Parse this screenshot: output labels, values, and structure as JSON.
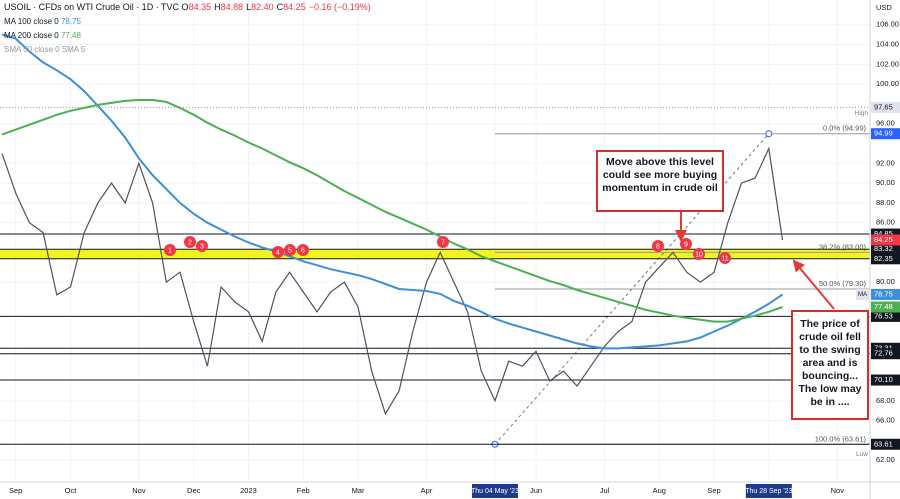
{
  "chart_data": {
    "type": "line",
    "title": "USOIL · CFDs on WTI Crude Oil · 1D · TVC",
    "ohlc": [
      {
        "key": "O",
        "text": "84.35"
      },
      {
        "key": "H",
        "text": "84.88"
      },
      {
        "key": "L",
        "text": "82.40"
      },
      {
        "key": "C",
        "text": "84.25"
      },
      {
        "key": "",
        "text": "−0.16 (−0.19%)"
      }
    ],
    "indicator_off": "SMA 50 close 0 SMA 5",
    "currency": "USD",
    "categories": [
      null,
      "Sep",
      null,
      null,
      null,
      "Oct",
      null,
      null,
      null,
      null,
      "Nov",
      null,
      null,
      null,
      "Dec",
      null,
      null,
      null,
      "2023",
      null,
      null,
      null,
      "Feb",
      null,
      null,
      null,
      "Mar",
      null,
      null,
      null,
      null,
      "Apr",
      null,
      null,
      null,
      null,
      "Thu 04 May '23",
      null,
      null,
      "Jun",
      null,
      null,
      null,
      null,
      "Jul",
      null,
      null,
      null,
      "Aug",
      null,
      null,
      null,
      "Sep",
      null,
      null,
      null,
      "Thu 28 Sep '23",
      null,
      null,
      null,
      null,
      "Nov",
      null
    ],
    "series": [
      {
        "color": "#50535e",
        "values": [
          93,
          89,
          86,
          85,
          78.7,
          79.5,
          85,
          88,
          90,
          88,
          92,
          88,
          80,
          81,
          76,
          71.5,
          79.5,
          78,
          77,
          74,
          79,
          81,
          79,
          77,
          79,
          80,
          77.5,
          71,
          66.7,
          69,
          75,
          80,
          83,
          80,
          77,
          71,
          68,
          72,
          71.5,
          73,
          70,
          71,
          69.5,
          71.5,
          73.5,
          75,
          76,
          80,
          81.5,
          83,
          81,
          80,
          81,
          86,
          90,
          90.5,
          93.5,
          84.25,
          null,
          null,
          null,
          null,
          null
        ]
      },
      {
        "name": "MA 100 close 0",
        "legend_value": "78.75",
        "color": "#3d8fd9",
        "values": [
          105,
          104.6,
          103.3,
          102.2,
          101.4,
          100.5,
          99.3,
          97.8,
          96.3,
          94.6,
          92.5,
          90.8,
          89.4,
          88.0,
          86.9,
          86.0,
          85.3,
          84.6,
          84.0,
          83.5,
          83.1,
          82.6,
          82.1,
          81.7,
          81.3,
          81.0,
          80.7,
          80.3,
          79.8,
          79.3,
          79.2,
          79.1,
          78.8,
          78.1,
          77.6,
          77.0,
          76.3,
          75.8,
          75.4,
          75.0,
          74.6,
          74.2,
          73.8,
          73.5,
          73.3,
          73.3,
          73.4,
          73.5,
          73.6,
          73.8,
          74.0,
          74.4,
          75.0,
          75.6,
          76.3,
          77.0,
          77.8,
          78.75,
          null,
          null,
          null,
          null,
          null
        ]
      },
      {
        "name": "MA 200 close 0",
        "legend_value": "77.48",
        "color": "#4caf50",
        "values": [
          94.9,
          95.4,
          95.9,
          96.4,
          96.9,
          97.3,
          97.6,
          97.9,
          98.1,
          98.3,
          98.4,
          98.4,
          98.2,
          97.6,
          96.9,
          96.1,
          95.4,
          94.8,
          94.1,
          93.5,
          92.8,
          92.1,
          91.5,
          90.8,
          90.0,
          89.2,
          88.5,
          87.8,
          87.1,
          86.5,
          85.9,
          85.3,
          84.6,
          83.9,
          83.3,
          82.6,
          82.1,
          81.6,
          81.1,
          80.6,
          80.1,
          79.7,
          79.2,
          78.8,
          78.4,
          78.0,
          77.6,
          77.2,
          76.9,
          76.6,
          76.4,
          76.2,
          76.0,
          76.0,
          76.3,
          76.6,
          77.0,
          77.48,
          null,
          null,
          null,
          null,
          null
        ]
      }
    ],
    "ylim": [
      60,
      108.5
    ],
    "yticks": [
      {
        "value": 106,
        "label": "106.00"
      },
      {
        "value": 104,
        "label": "104.00"
      },
      {
        "value": 102,
        "label": "102.00"
      },
      {
        "value": 100,
        "label": "100.00"
      },
      {
        "value": 96,
        "label": "96.00"
      },
      {
        "value": 92,
        "label": "92.00"
      },
      {
        "value": 90,
        "label": "90.00"
      },
      {
        "value": 88,
        "label": "88.00"
      },
      {
        "value": 86,
        "label": "86.00"
      },
      {
        "value": 80,
        "label": "80.00"
      },
      {
        "value": 68,
        "label": "68.00"
      },
      {
        "value": 66,
        "label": "66.00"
      },
      {
        "value": 62,
        "label": "62.00"
      }
    ],
    "grid": true,
    "levels": [
      {
        "value": 84.85,
        "label": "84.85"
      },
      {
        "value": 83.32,
        "label": "83.32",
        "band": true
      },
      {
        "value": 82.35,
        "label": "82.35",
        "band": true
      },
      {
        "value": 76.53,
        "label": "76.53"
      },
      {
        "value": 73.31,
        "label": "73.31"
      },
      {
        "value": 72.76,
        "label": "72.76"
      },
      {
        "value": 70.1,
        "label": "70.10"
      },
      {
        "value": 63.61,
        "label": "63.61"
      }
    ],
    "level_color": "#131722",
    "band_color": "#f2f20a",
    "price_tags": [
      {
        "value": 94.99,
        "label": "94.99",
        "color": "#2962ff"
      },
      {
        "value": 84.25,
        "label": "84.25",
        "color": "#f23645"
      },
      {
        "value": 78.75,
        "label": "78.75",
        "color": "#3d8fd9",
        "tag": "MA"
      },
      {
        "value": 77.48,
        "label": "77.48",
        "color": "#4caf50"
      }
    ],
    "high": {
      "value": 97.65,
      "label": "97.65",
      "tag": "High"
    },
    "low_tag": "Low",
    "fib": [
      {
        "value": 94.99,
        "label": "0.0% (94.99)"
      },
      {
        "value": 83.0,
        "label": "38.2% (83.00)"
      },
      {
        "value": 79.3,
        "label": "50.0% (79.30)"
      },
      {
        "value": 63.61,
        "label": "100.0% (63.61)"
      }
    ],
    "fib_anchors": [
      "Thu 04 May '23",
      "Thu 28 Sep '23"
    ],
    "markers": [
      "1",
      "2",
      "3",
      "4",
      "5",
      "6",
      "7",
      "8",
      "9",
      "10",
      "11"
    ],
    "notes": [
      "Move above this level could see more buying momentum in crude oil",
      "The price of crude oil fell to the swing area and is bouncing... The low may be in ...."
    ]
  }
}
